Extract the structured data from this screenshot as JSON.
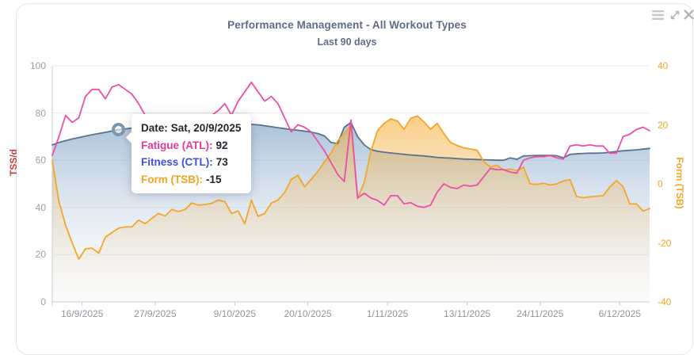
{
  "header": {
    "title": "Performance Management - All Workout Types",
    "subtitle": "Last 90 days",
    "title_color": "#5f6c87"
  },
  "window": {
    "icons": [
      {
        "name": "menu-icon",
        "color": "#c5c7cb"
      },
      {
        "name": "expand-icon",
        "color": "#b5b8bd"
      },
      {
        "name": "close-icon",
        "color": "#aeb1b6"
      }
    ]
  },
  "chart_data": {
    "type": "line",
    "title": "Performance Management - All Workout Types",
    "subtitle": "Last 90 days",
    "grid": true,
    "legend": "none",
    "x_axis": {
      "tick_labels": [
        "16/9/2025",
        "27/9/2025",
        "9/10/2025",
        "20/10/2025",
        "1/11/2025",
        "13/11/2025",
        "24/11/2025",
        "6/12/2025"
      ],
      "tick_days": [
        4,
        15,
        27,
        38,
        50,
        62,
        73,
        85
      ],
      "total_days": 91,
      "tick_color": "#8f959d"
    },
    "left_axis": {
      "label": "TSS/d",
      "min": 0,
      "max": 100,
      "ticks": [
        0,
        20,
        40,
        60,
        80,
        100
      ],
      "label_color": "#c3403c",
      "tick_color": "#9aa0a6"
    },
    "right_axis": {
      "label": "Form (TSB)",
      "min": -40,
      "max": 40,
      "ticks": [
        -40,
        -20,
        0,
        20,
        40
      ],
      "label_color": "#f5a623",
      "tick_color": "#f5a623"
    },
    "series": [
      {
        "name": "Fitness (CTL)",
        "type": "area",
        "axis": "left",
        "color": "#56738f",
        "fill_top": "rgba(116,154,193,0.60)",
        "fill_bottom": "rgba(219,229,240,0.05)",
        "values": [
          66.5,
          67.5,
          68.3,
          69,
          69.6,
          70.2,
          70.8,
          71.3,
          71.8,
          72.4,
          73,
          73.3,
          73.6,
          73.8,
          74,
          74.2,
          74.3,
          74.4,
          74.5,
          74.5,
          74.6,
          74.7,
          74.7,
          74.8,
          74.9,
          75,
          75,
          75,
          75,
          75.1,
          75.2,
          75,
          74.6,
          74.2,
          73.8,
          73.4,
          73,
          72.7,
          72.3,
          71.9,
          71.3,
          70.3,
          67.5,
          67,
          74,
          76,
          70,
          66.5,
          64.5,
          63.8,
          63.4,
          63.1,
          62.8,
          62.5,
          62.2,
          62,
          61.8,
          61.5,
          61.2,
          61,
          60.9,
          60.7,
          60.5,
          60.4,
          60.3,
          60.2,
          60.1,
          60,
          60,
          61,
          60.4,
          61.8,
          61.9,
          62,
          62,
          62,
          61.9,
          61,
          62.5,
          62.7,
          62.9,
          63,
          63,
          63.1,
          63.4,
          63.7,
          64,
          64.2,
          64.4,
          64.7,
          65
        ]
      },
      {
        "name": "Form (TSB)",
        "type": "area",
        "axis": "right",
        "color": "#f4a62a",
        "fill_top": "rgba(245,166,35,0.55)",
        "fill_bottom": "rgba(238,228,212,0.08)",
        "values": [
          8,
          -6,
          -14,
          -20,
          -25.5,
          -22,
          -21.8,
          -23.5,
          -18,
          -16.5,
          -15,
          -14.6,
          -14.6,
          -12.3,
          -13.5,
          -11.7,
          -10,
          -10.9,
          -8.7,
          -9.4,
          -8.7,
          -6.5,
          -7.2,
          -7,
          -6.6,
          -5.5,
          -6,
          -10,
          -9.2,
          -13.5,
          -5.5,
          -11,
          -10,
          -6.5,
          -5.5,
          -3,
          1.5,
          2.9,
          -1,
          1.5,
          4.2,
          7.4,
          10.5,
          14.5,
          17,
          19.9,
          -5,
          0.5,
          11,
          18,
          20.5,
          22,
          21.3,
          18.5,
          22.2,
          23,
          21,
          18.5,
          20.5,
          17,
          14,
          13,
          12.2,
          11.8,
          11.4,
          7.5,
          5.7,
          6.3,
          4.7,
          5,
          4.5,
          5.6,
          0,
          -0.2,
          0.2,
          -0.4,
          0,
          1,
          1.4,
          -4.3,
          -4.7,
          -4.4,
          -4.2,
          -4,
          -1.1,
          1.1,
          -1,
          -6.8,
          -6.8,
          -9.2,
          -8.4
        ]
      },
      {
        "name": "Fatigue (ATL)",
        "type": "line",
        "axis": "left",
        "color": "#eb4fa7",
        "values": [
          62,
          70,
          79,
          76,
          78,
          87,
          90,
          90,
          86,
          91,
          92,
          90,
          88,
          84,
          79,
          76,
          74,
          72,
          71,
          71,
          72,
          73,
          75,
          77,
          79,
          81,
          84,
          79,
          85,
          89,
          93,
          89,
          85,
          87,
          84,
          78,
          72,
          75,
          74,
          72,
          68,
          64,
          59,
          54,
          51,
          77,
          44,
          46,
          44,
          43,
          41,
          45,
          45,
          41.5,
          42,
          40.5,
          40,
          41,
          46.5,
          50,
          48.5,
          48,
          49.5,
          49,
          49.5,
          53,
          56.5,
          56,
          56,
          55,
          54.5,
          60,
          61,
          61.5,
          61.5,
          62,
          61,
          60.5,
          66,
          66.5,
          66,
          66.5,
          66,
          66,
          63,
          63,
          70,
          71,
          73,
          74,
          72.5
        ]
      }
    ]
  },
  "marker": {
    "day": 10,
    "series": "Fitness (CTL)",
    "ring_color": "#7e97ac"
  },
  "tooltip": {
    "rows": [
      {
        "label": "Date:",
        "value": "Sat, 20/9/2025",
        "color": "#23262e"
      },
      {
        "label": "Fatigue (ATL):",
        "value": "92",
        "color": "#e8399a"
      },
      {
        "label": "Fitness (CTL):",
        "value": "73",
        "color": "#3c50e0"
      },
      {
        "label": "Form (TSB):",
        "value": "-15",
        "color": "#f5a51f"
      }
    ]
  }
}
